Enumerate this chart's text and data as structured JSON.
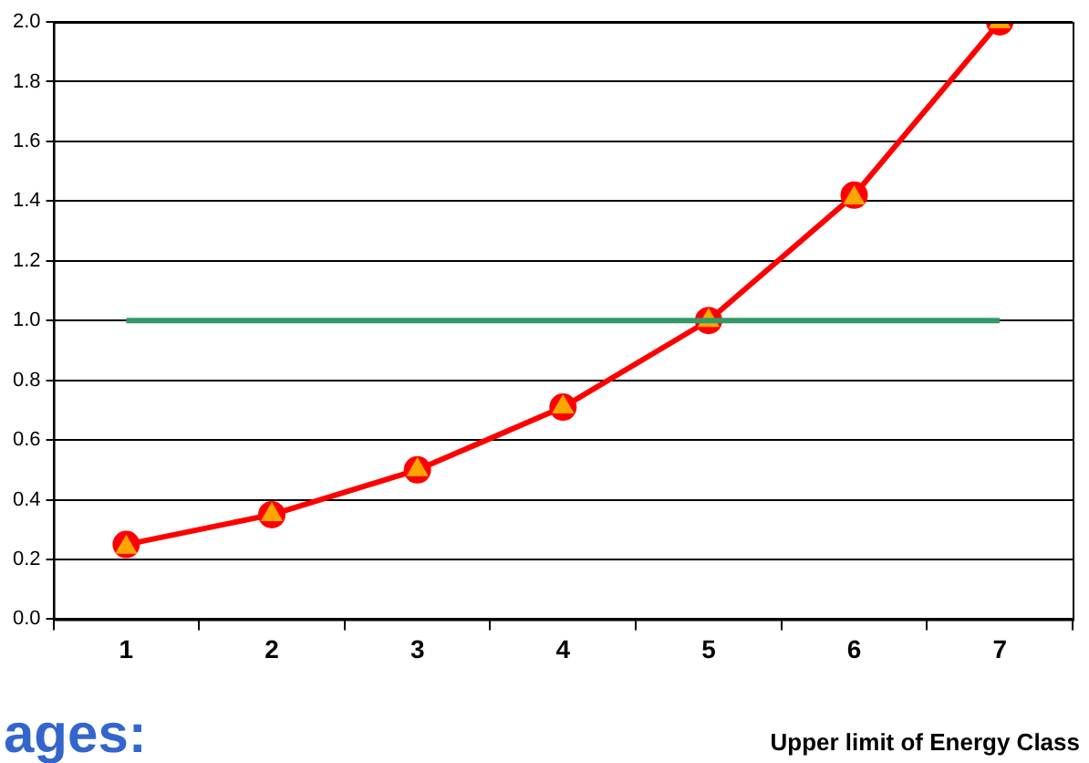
{
  "chart_data": {
    "type": "line",
    "xlabel": "Upper limit of Energy Class",
    "categories": [
      "1",
      "2",
      "3",
      "4",
      "5",
      "6",
      "7"
    ],
    "series": [
      {
        "color": "#ff0000",
        "marker": "circle",
        "values": [
          0.25,
          0.35,
          0.5,
          0.71,
          1.0,
          1.42,
          2.0
        ]
      },
      {
        "type": "scatter",
        "color": "#ffa500",
        "marker": "triangle",
        "x": [
          "1",
          "2",
          "3",
          "4",
          "5",
          "6",
          "7"
        ],
        "values": [
          0.24,
          0.35,
          0.5,
          0.71,
          1.0,
          1.41,
          2.0
        ]
      },
      {
        "color": "#339966",
        "marker": "none",
        "values": [
          1.0,
          1.0,
          1.0,
          1.0,
          1.0,
          1.0,
          1.0
        ]
      }
    ],
    "ylim": [
      0,
      2
    ],
    "yticks": [
      {
        "value": 0,
        "label": "0.0"
      },
      {
        "value": 0.2,
        "label": "0.2"
      },
      {
        "value": 0.4,
        "label": "0.4"
      },
      {
        "value": 0.6,
        "label": "0.6"
      },
      {
        "value": 0.8,
        "label": "0.8"
      },
      {
        "value": 1,
        "label": "1.0"
      },
      {
        "value": 1.2,
        "label": "1.2"
      },
      {
        "value": 1.4,
        "label": "1.4"
      },
      {
        "value": 1.6,
        "label": "1.6"
      },
      {
        "value": 1.8,
        "label": "1.8"
      },
      {
        "value": 2,
        "label": "2.0"
      }
    ],
    "grid": "y",
    "legend": false,
    "annotations": [
      "ages:"
    ]
  }
}
